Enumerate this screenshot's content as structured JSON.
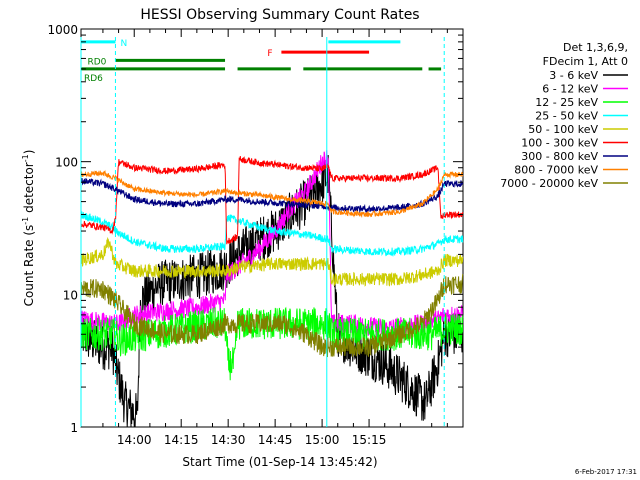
{
  "chart_data": {
    "type": "line",
    "title": "HESSI Observing Summary Count Rates",
    "xlabel": "Start Time (01-Sep-14 13:45:42)",
    "ylabel_main": "Count Rate (s",
    "ylabel_sup1": "-1",
    "ylabel_mid": " detector",
    "ylabel_sup2": "-1",
    "ylabel_end": ")",
    "y_scale": "log",
    "ylim": [
      1,
      1000
    ],
    "xlim_minutes": [
      -17,
      105
    ],
    "x_ticks": [
      {
        "label": "14:00",
        "m": 0
      },
      {
        "label": "14:15",
        "m": 15
      },
      {
        "label": "14:30",
        "m": 30
      },
      {
        "label": "14:45",
        "m": 45
      },
      {
        "label": "15:00",
        "m": 60
      },
      {
        "label": "15:15",
        "m": 75
      }
    ],
    "y_ticks": [
      {
        "label": "1",
        "v": 1
      },
      {
        "label": "10",
        "v": 10
      },
      {
        "label": "100",
        "v": 100
      },
      {
        "label": "1000",
        "v": 1000
      }
    ],
    "legend_header": [
      "Det 1,3,6,9,",
      "FDecim 1, Att 0"
    ],
    "stamp": "6-Feb-2017 17:31",
    "bands": [
      {
        "label": "N",
        "color": "#00ffff",
        "level": 800,
        "segments": [
          [
            -17,
            -6
          ],
          [
            62,
            85
          ]
        ]
      },
      {
        "label": "RD0",
        "color": "#008000",
        "level": 580,
        "segments": [
          [
            -6,
            29
          ]
        ]
      },
      {
        "label": "RD6",
        "color": "#008000",
        "level": 500,
        "segments": [
          [
            -17,
            29
          ],
          [
            33,
            50
          ],
          [
            54,
            92
          ],
          [
            94,
            98
          ]
        ]
      },
      {
        "label": "F",
        "color": "#ff0000",
        "level": 670,
        "segments": [
          [
            47,
            75
          ]
        ]
      }
    ],
    "gaps": [
      {
        "color": "#00ffff",
        "style": "solid",
        "m": [
          -17,
          61.5
        ]
      },
      {
        "color": "#00ffff",
        "style": "dashed",
        "m": [
          -6,
          99
        ]
      }
    ],
    "series": [
      {
        "name": "3 - 6 keV",
        "color": "#000000"
      },
      {
        "name": "6 - 12 keV",
        "color": "#ff00ff"
      },
      {
        "name": "12 - 25 keV",
        "color": "#00ff00"
      },
      {
        "name": "25 - 50 keV",
        "color": "#00ffff"
      },
      {
        "name": "50 - 100 keV",
        "color": "#cccc00"
      },
      {
        "name": "100 - 300 keV",
        "color": "#ff0000"
      },
      {
        "name": "300 - 800 keV",
        "color": "#000080"
      },
      {
        "name": "800 - 7000 keV",
        "color": "#ff8000"
      },
      {
        "name": "7000 - 20000 keV",
        "color": "#808000"
      }
    ],
    "profiles": [
      {
        "series": 0,
        "noise": 0.35,
        "pts": [
          [
            -17,
            5
          ],
          [
            -10,
            4
          ],
          [
            -7,
            4
          ],
          [
            -6,
            3
          ],
          [
            -3,
            1.5
          ],
          [
            1,
            1.2
          ],
          [
            2,
            9
          ],
          [
            8,
            12
          ],
          [
            15,
            13
          ],
          [
            22,
            14
          ],
          [
            29,
            16
          ],
          [
            33,
            20
          ],
          [
            40,
            26
          ],
          [
            45,
            30
          ],
          [
            50,
            40
          ],
          [
            55,
            50
          ],
          [
            60,
            70
          ],
          [
            62,
            80
          ],
          [
            65,
            5
          ],
          [
            70,
            4
          ],
          [
            80,
            3
          ],
          [
            88,
            2
          ],
          [
            93,
            1.5
          ],
          [
            97,
            3
          ],
          [
            99,
            5
          ]
        ]
      },
      {
        "series": 1,
        "noise": 0.15,
        "pts": [
          [
            -17,
            6.5
          ],
          [
            -6,
            6
          ],
          [
            -5,
            6
          ],
          [
            0,
            7
          ],
          [
            10,
            7.5
          ],
          [
            20,
            8
          ],
          [
            29,
            9
          ],
          [
            29.5,
            14
          ],
          [
            33,
            16
          ],
          [
            40,
            22
          ],
          [
            45,
            30
          ],
          [
            50,
            45
          ],
          [
            55,
            60
          ],
          [
            60,
            100
          ],
          [
            62,
            110
          ],
          [
            63,
            6
          ],
          [
            70,
            6
          ],
          [
            80,
            5.5
          ],
          [
            92,
            6
          ],
          [
            97,
            6.5
          ],
          [
            99,
            7
          ]
        ]
      },
      {
        "series": 2,
        "noise": 0.25,
        "pts": [
          [
            -17,
            5
          ],
          [
            -6,
            5
          ],
          [
            -5,
            4.5
          ],
          [
            5,
            5
          ],
          [
            15,
            5.5
          ],
          [
            25,
            6
          ],
          [
            29,
            6
          ],
          [
            30,
            3
          ],
          [
            32,
            3
          ],
          [
            33,
            6
          ],
          [
            45,
            6
          ],
          [
            55,
            6
          ],
          [
            62,
            6
          ],
          [
            63,
            5
          ],
          [
            75,
            5
          ],
          [
            85,
            5
          ],
          [
            95,
            5
          ],
          [
            99,
            5.5
          ]
        ]
      },
      {
        "series": 3,
        "noise": 0.06,
        "pts": [
          [
            -17,
            40
          ],
          [
            -10,
            35
          ],
          [
            -7,
            32
          ],
          [
            -6,
            30
          ],
          [
            0,
            25
          ],
          [
            10,
            22
          ],
          [
            20,
            22
          ],
          [
            29,
            23
          ],
          [
            29.5,
            38
          ],
          [
            33,
            36
          ],
          [
            40,
            32
          ],
          [
            45,
            30
          ],
          [
            55,
            28
          ],
          [
            62,
            26
          ],
          [
            63,
            22
          ],
          [
            75,
            21
          ],
          [
            85,
            21
          ],
          [
            92,
            22
          ],
          [
            97,
            24
          ],
          [
            99,
            26
          ]
        ]
      },
      {
        "series": 4,
        "noise": 0.1,
        "pts": [
          [
            -17,
            18
          ],
          [
            -10,
            20
          ],
          [
            -8,
            25
          ],
          [
            -6,
            17
          ],
          [
            0,
            15
          ],
          [
            10,
            15
          ],
          [
            20,
            15
          ],
          [
            29,
            15
          ],
          [
            30,
            15
          ],
          [
            33,
            16
          ],
          [
            45,
            17
          ],
          [
            55,
            17
          ],
          [
            62,
            17
          ],
          [
            63,
            13
          ],
          [
            75,
            13
          ],
          [
            85,
            13
          ],
          [
            92,
            14
          ],
          [
            97,
            15
          ],
          [
            99,
            18
          ]
        ]
      },
      {
        "series": 5,
        "noise": 0.05,
        "pts": [
          [
            -17,
            34
          ],
          [
            -10,
            32
          ],
          [
            -7,
            30
          ],
          [
            -6,
            37
          ],
          [
            -5,
            100
          ],
          [
            0,
            90
          ],
          [
            10,
            85
          ],
          [
            20,
            88
          ],
          [
            29,
            95
          ],
          [
            29.5,
            25
          ],
          [
            33,
            27
          ],
          [
            33.5,
            105
          ],
          [
            40,
            98
          ],
          [
            50,
            92
          ],
          [
            60,
            88
          ],
          [
            62,
            92
          ],
          [
            63,
            75
          ],
          [
            75,
            75
          ],
          [
            85,
            75
          ],
          [
            92,
            80
          ],
          [
            97,
            90
          ],
          [
            98,
            37
          ],
          [
            99,
            40
          ]
        ]
      },
      {
        "series": 6,
        "noise": 0.05,
        "pts": [
          [
            -17,
            72
          ],
          [
            -10,
            68
          ],
          [
            -6,
            62
          ],
          [
            0,
            52
          ],
          [
            10,
            48
          ],
          [
            20,
            48
          ],
          [
            29,
            52
          ],
          [
            33,
            52
          ],
          [
            40,
            50
          ],
          [
            50,
            48
          ],
          [
            62,
            46
          ],
          [
            63,
            45
          ],
          [
            75,
            44
          ],
          [
            85,
            45
          ],
          [
            92,
            48
          ],
          [
            97,
            55
          ],
          [
            99,
            68
          ]
        ]
      },
      {
        "series": 7,
        "noise": 0.04,
        "pts": [
          [
            -17,
            80
          ],
          [
            -10,
            82
          ],
          [
            -6,
            75
          ],
          [
            0,
            62
          ],
          [
            10,
            58
          ],
          [
            20,
            56
          ],
          [
            29,
            60
          ],
          [
            33,
            58
          ],
          [
            40,
            56
          ],
          [
            50,
            52
          ],
          [
            62,
            48
          ],
          [
            63,
            42
          ],
          [
            75,
            40
          ],
          [
            85,
            42
          ],
          [
            92,
            48
          ],
          [
            97,
            62
          ],
          [
            99,
            80
          ]
        ]
      },
      {
        "series": 8,
        "noise": 0.15,
        "pts": [
          [
            -17,
            11
          ],
          [
            -10,
            11
          ],
          [
            -6,
            9
          ],
          [
            0,
            6
          ],
          [
            10,
            5
          ],
          [
            20,
            5
          ],
          [
            29,
            6
          ],
          [
            33,
            6
          ],
          [
            40,
            6
          ],
          [
            48,
            6
          ],
          [
            55,
            5
          ],
          [
            60,
            4
          ],
          [
            62,
            4
          ],
          [
            65,
            4
          ],
          [
            75,
            4
          ],
          [
            85,
            5
          ],
          [
            92,
            6
          ],
          [
            97,
            9
          ],
          [
            99,
            12
          ]
        ]
      }
    ]
  }
}
